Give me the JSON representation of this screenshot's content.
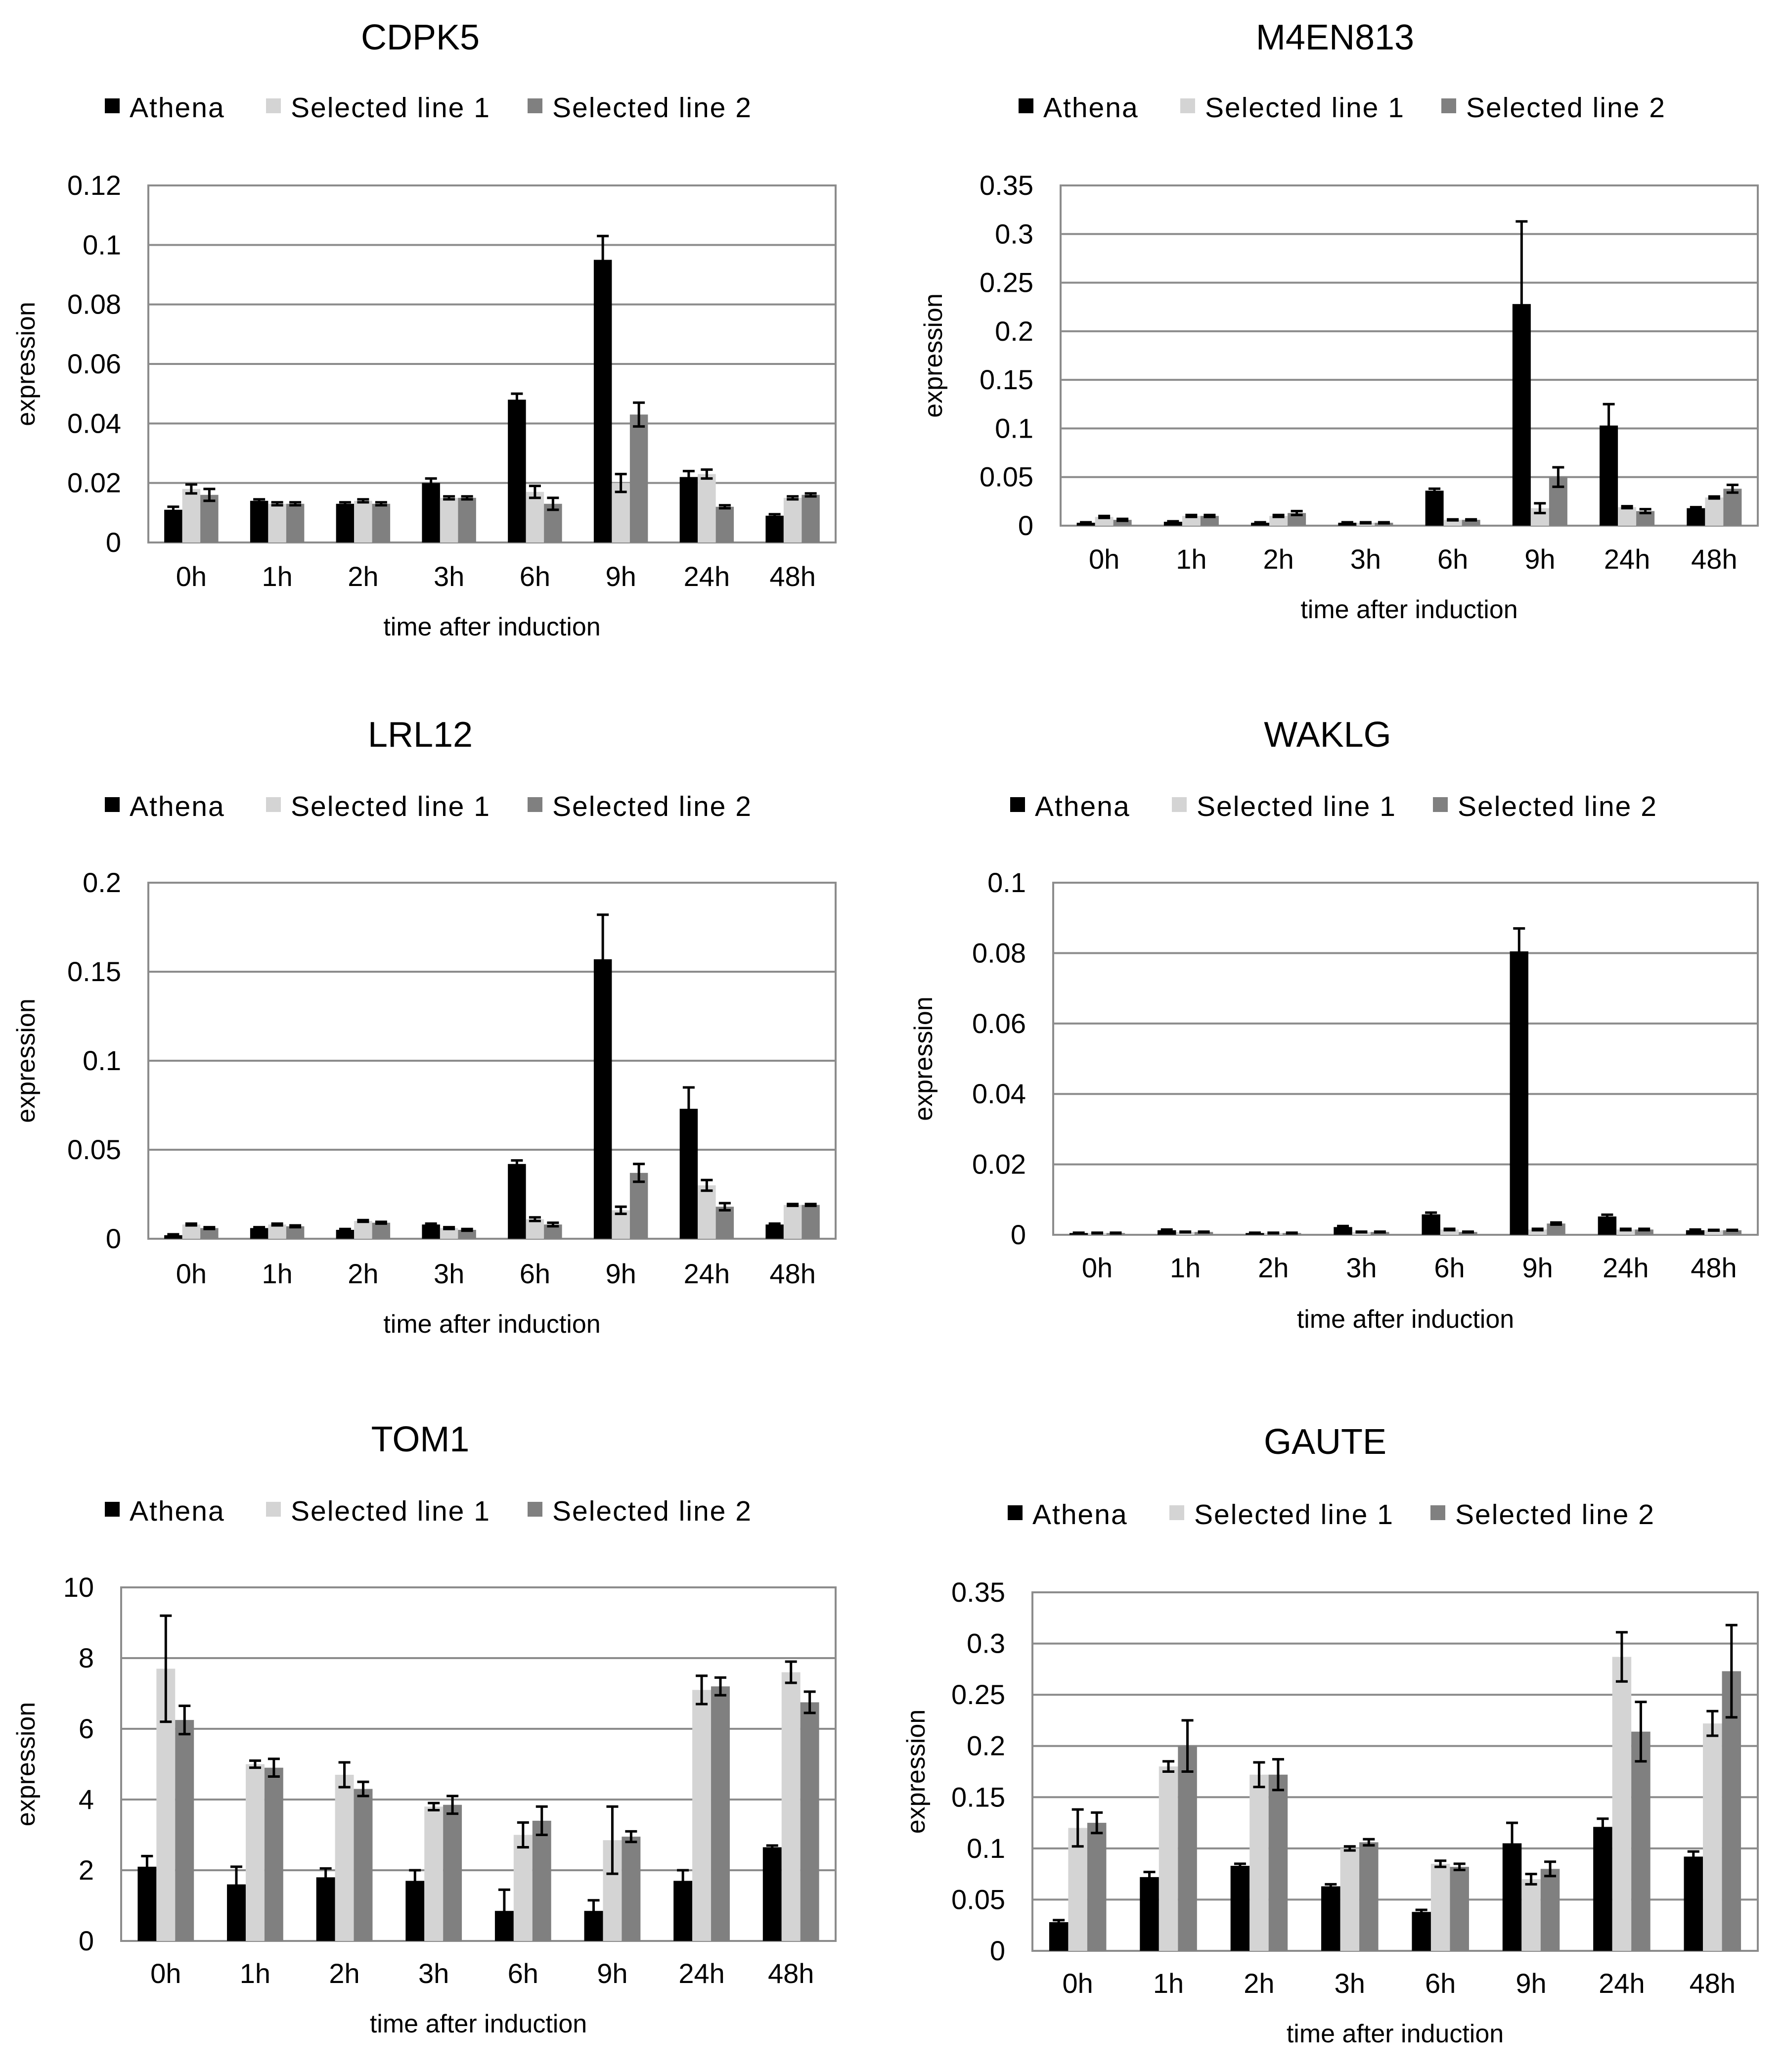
{
  "chart_data": [
    {
      "type": "bar",
      "title": "CDPK5",
      "xlabel": "time after induction",
      "ylabel": "expression",
      "categories": [
        "0h",
        "1h",
        "2h",
        "3h",
        "6h",
        "9h",
        "24h",
        "48h"
      ],
      "ylim": [
        0,
        0.12
      ],
      "yticks": [
        0,
        0.02,
        0.04,
        0.06,
        0.08,
        0.1,
        0.12
      ],
      "ytick_labels": [
        "0",
        "0.02",
        "0.04",
        "0.06",
        "0.08",
        "0.1",
        "0.12"
      ],
      "grid": true,
      "legend_position": "top",
      "series": [
        {
          "name": "Athena",
          "color": "#000000",
          "values": [
            0.011,
            0.014,
            0.013,
            0.02,
            0.048,
            0.095,
            0.022,
            0.009
          ],
          "errors": [
            0.001,
            0.0005,
            0.0005,
            0.0015,
            0.002,
            0.008,
            0.002,
            0.0005
          ]
        },
        {
          "name": "Selected line 1",
          "color": "#d4d4d4",
          "values": [
            0.018,
            0.013,
            0.014,
            0.015,
            0.017,
            0.02,
            0.023,
            0.015
          ],
          "errors": [
            0.0015,
            0.0005,
            0.0005,
            0.0005,
            0.002,
            0.003,
            0.0015,
            0.0005
          ]
        },
        {
          "name": "Selected line 2",
          "color": "#808080",
          "values": [
            0.016,
            0.013,
            0.013,
            0.015,
            0.013,
            0.043,
            0.012,
            0.016
          ],
          "errors": [
            0.002,
            0.0005,
            0.0005,
            0.0005,
            0.002,
            0.004,
            0.0005,
            0.0005
          ]
        }
      ]
    },
    {
      "type": "bar",
      "title": "M4EN813",
      "xlabel": "time after induction",
      "ylabel": "expression",
      "categories": [
        "0h",
        "1h",
        "2h",
        "3h",
        "6h",
        "9h",
        "24h",
        "48h"
      ],
      "ylim": [
        0,
        0.35
      ],
      "yticks": [
        0,
        0.05,
        0.1,
        0.15,
        0.2,
        0.25,
        0.3,
        0.35
      ],
      "ytick_labels": [
        "0",
        "0.05",
        "0.1",
        "0.15",
        "0.2",
        "0.25",
        "0.3",
        "0.35"
      ],
      "grid": true,
      "legend_position": "top",
      "series": [
        {
          "name": "Athena",
          "color": "#000000",
          "values": [
            0.003,
            0.004,
            0.003,
            0.003,
            0.036,
            0.228,
            0.103,
            0.018
          ],
          "errors": [
            0.0005,
            0.0005,
            0.0005,
            0.0005,
            0.002,
            0.085,
            0.022,
            0.001
          ]
        },
        {
          "name": "Selected line 1",
          "color": "#d4d4d4",
          "values": [
            0.009,
            0.01,
            0.01,
            0.003,
            0.006,
            0.018,
            0.019,
            0.029
          ],
          "errors": [
            0.001,
            0.001,
            0.001,
            0.0005,
            0.0005,
            0.005,
            0.001,
            0.001
          ]
        },
        {
          "name": "Selected line 2",
          "color": "#808080",
          "values": [
            0.006,
            0.01,
            0.013,
            0.003,
            0.006,
            0.05,
            0.015,
            0.038
          ],
          "errors": [
            0.001,
            0.001,
            0.002,
            0.0005,
            0.0005,
            0.01,
            0.002,
            0.004
          ]
        }
      ]
    },
    {
      "type": "bar",
      "title": "LRL12",
      "xlabel": "time after induction",
      "ylabel": "expression",
      "categories": [
        "0h",
        "1h",
        "2h",
        "3h",
        "6h",
        "9h",
        "24h",
        "48h"
      ],
      "ylim": [
        0,
        0.2
      ],
      "yticks": [
        0,
        0.05,
        0.1,
        0.15,
        0.2
      ],
      "ytick_labels": [
        "0",
        "0.05",
        "0.1",
        "0.15",
        "0.2"
      ],
      "grid": true,
      "legend_position": "top",
      "series": [
        {
          "name": "Athena",
          "color": "#000000",
          "values": [
            0.002,
            0.006,
            0.005,
            0.008,
            0.042,
            0.157,
            0.073,
            0.008
          ],
          "errors": [
            0.0005,
            0.0005,
            0.0005,
            0.0005,
            0.002,
            0.025,
            0.012,
            0.0005
          ]
        },
        {
          "name": "Selected line 1",
          "color": "#d4d4d4",
          "values": [
            0.008,
            0.008,
            0.01,
            0.006,
            0.011,
            0.016,
            0.03,
            0.019
          ],
          "errors": [
            0.0005,
            0.0005,
            0.0005,
            0.0005,
            0.001,
            0.002,
            0.003,
            0.0005
          ]
        },
        {
          "name": "Selected line 2",
          "color": "#808080",
          "values": [
            0.006,
            0.007,
            0.009,
            0.005,
            0.008,
            0.037,
            0.018,
            0.019
          ],
          "errors": [
            0.0005,
            0.0005,
            0.0005,
            0.0005,
            0.001,
            0.005,
            0.002,
            0.0005
          ]
        }
      ]
    },
    {
      "type": "bar",
      "title": "WAKLG",
      "xlabel": "time after induction",
      "ylabel": "expression",
      "categories": [
        "0h",
        "1h",
        "2h",
        "3h",
        "6h",
        "9h",
        "24h",
        "48h"
      ],
      "ylim": [
        0,
        0.1
      ],
      "yticks": [
        0,
        0.02,
        0.04,
        0.06,
        0.08,
        0.1
      ],
      "ytick_labels": [
        "0",
        "0.02",
        "0.04",
        "0.06",
        "0.08",
        "0.1"
      ],
      "grid": true,
      "legend_position": "top",
      "series": [
        {
          "name": "Athena",
          "color": "#000000",
          "values": [
            0.0005,
            0.0013,
            0.0005,
            0.0022,
            0.0058,
            0.0805,
            0.0052,
            0.0013
          ],
          "errors": [
            0.0001,
            0.0002,
            0.0001,
            0.0003,
            0.0005,
            0.0065,
            0.0005,
            0.0002
          ]
        },
        {
          "name": "Selected line 1",
          "color": "#d4d4d4",
          "values": [
            0.0005,
            0.0008,
            0.0005,
            0.0008,
            0.0015,
            0.0015,
            0.0015,
            0.0013
          ],
          "errors": [
            0.0001,
            0.0001,
            0.0001,
            0.0001,
            0.0002,
            0.0002,
            0.0002,
            0.0001
          ]
        },
        {
          "name": "Selected line 2",
          "color": "#808080",
          "values": [
            0.0005,
            0.0008,
            0.0005,
            0.0008,
            0.0008,
            0.0032,
            0.0015,
            0.0013
          ],
          "errors": [
            0.0001,
            0.0001,
            0.0001,
            0.0001,
            0.0001,
            0.0003,
            0.0002,
            0.0001
          ]
        }
      ]
    },
    {
      "type": "bar",
      "title": "TOM1",
      "xlabel": "time after induction",
      "ylabel": "expression",
      "categories": [
        "0h",
        "1h",
        "2h",
        "3h",
        "6h",
        "9h",
        "24h",
        "48h"
      ],
      "ylim": [
        0,
        10
      ],
      "yticks": [
        0,
        2,
        4,
        6,
        8,
        10
      ],
      "ytick_labels": [
        "0",
        "2",
        "4",
        "6",
        "8",
        "10"
      ],
      "grid": true,
      "legend_position": "top",
      "series": [
        {
          "name": "Athena",
          "color": "#000000",
          "values": [
            2.1,
            1.6,
            1.8,
            1.7,
            0.85,
            0.85,
            1.7,
            2.65
          ],
          "errors": [
            0.3,
            0.5,
            0.25,
            0.3,
            0.6,
            0.3,
            0.3,
            0.05
          ]
        },
        {
          "name": "Selected line 1",
          "color": "#d4d4d4",
          "values": [
            7.7,
            5.0,
            4.7,
            3.8,
            3.0,
            2.85,
            7.1,
            7.6
          ],
          "errors": [
            1.5,
            0.1,
            0.35,
            0.1,
            0.35,
            0.95,
            0.4,
            0.3
          ]
        },
        {
          "name": "Selected line 2",
          "color": "#808080",
          "values": [
            6.25,
            4.9,
            4.3,
            3.85,
            3.4,
            2.95,
            7.2,
            6.75
          ],
          "errors": [
            0.4,
            0.25,
            0.2,
            0.25,
            0.4,
            0.15,
            0.25,
            0.3
          ]
        }
      ]
    },
    {
      "type": "bar",
      "title": "GAUTE",
      "xlabel": "time after induction",
      "ylabel": "expression",
      "categories": [
        "0h",
        "1h",
        "2h",
        "3h",
        "6h",
        "9h",
        "24h",
        "48h"
      ],
      "ylim": [
        0,
        0.35
      ],
      "yticks": [
        0,
        0.05,
        0.1,
        0.15,
        0.2,
        0.25,
        0.3,
        0.35
      ],
      "ytick_labels": [
        "0",
        "0.05",
        "0.1",
        "0.15",
        "0.2",
        "0.25",
        "0.3",
        "0.35"
      ],
      "grid": true,
      "legend_position": "top",
      "series": [
        {
          "name": "Athena",
          "color": "#000000",
          "values": [
            0.028,
            0.072,
            0.083,
            0.063,
            0.038,
            0.105,
            0.121,
            0.092
          ],
          "errors": [
            0.002,
            0.005,
            0.002,
            0.002,
            0.002,
            0.02,
            0.008,
            0.005
          ]
        },
        {
          "name": "Selected line 1",
          "color": "#d4d4d4",
          "values": [
            0.12,
            0.18,
            0.172,
            0.1,
            0.085,
            0.07,
            0.287,
            0.222
          ],
          "errors": [
            0.018,
            0.005,
            0.012,
            0.002,
            0.003,
            0.005,
            0.024,
            0.012
          ]
        },
        {
          "name": "Selected line 2",
          "color": "#808080",
          "values": [
            0.125,
            0.2,
            0.172,
            0.106,
            0.082,
            0.08,
            0.214,
            0.273
          ],
          "errors": [
            0.01,
            0.025,
            0.015,
            0.003,
            0.003,
            0.007,
            0.029,
            0.045
          ]
        }
      ]
    }
  ]
}
